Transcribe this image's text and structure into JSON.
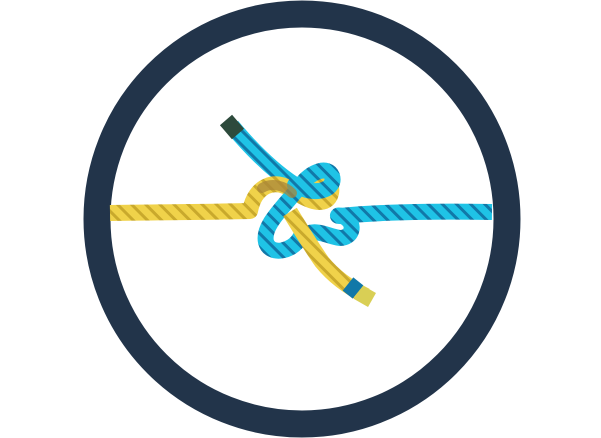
{
  "figure": {
    "subject": "knot-icon",
    "colors": {
      "ring": "#22344a",
      "background": "#ffffff",
      "rope_yellow": "#f0d24a",
      "rope_yellow_shadow": "#c9a92c",
      "rope_blue": "#1fc3e6",
      "rope_blue_shadow": "#1178a8",
      "rope_brown": "#a8853a",
      "rope_end_dark": "#2d4a3c",
      "rope_end_yellow": "#d9cf55"
    }
  }
}
